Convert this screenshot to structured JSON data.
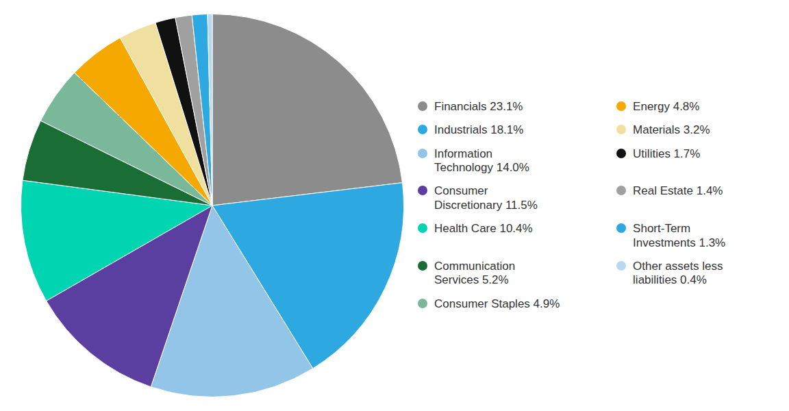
{
  "chart_data": {
    "type": "pie",
    "categories": [
      "Financials 23.1%",
      "Industrials 18.1%",
      "Information\nTechnology 14.0%",
      "Consumer\nDiscretionary 11.5%",
      "Health Care 10.4%",
      "Communication\nServices 5.2%",
      "Consumer Staples 4.9%",
      "Energy 4.8%",
      "Materials 3.2%",
      "Utilities 1.7%",
      "Real Estate 1.4%",
      "Short-Term\nInvestments 1.3%",
      "Other assets less\nliabilities 0.4%"
    ],
    "values": [
      23.1,
      18.1,
      14.0,
      11.5,
      10.4,
      5.2,
      4.9,
      4.8,
      3.2,
      1.7,
      1.4,
      1.3,
      0.4
    ],
    "colors": [
      "#8c8c8c",
      "#2da8e0",
      "#92c5e8",
      "#5b3fa0",
      "#00d4b0",
      "#1a6e35",
      "#7ab89a",
      "#f5a800",
      "#f0e0a0",
      "#111111",
      "#a0a0a0",
      "#2da8e0",
      "#b8d8f0"
    ],
    "legend": "right"
  }
}
